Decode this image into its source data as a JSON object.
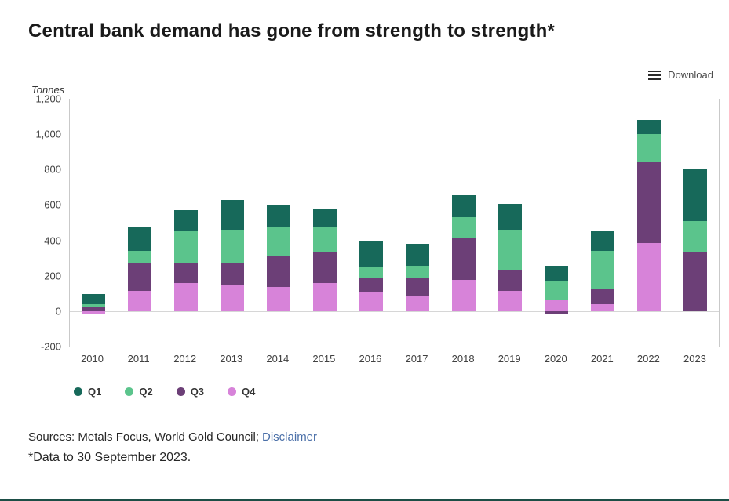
{
  "title": "Central bank demand has gone from strength to strength*",
  "toolbar": {
    "download_label": "Download"
  },
  "chart_data": {
    "type": "bar",
    "stacked": true,
    "title": "Central bank demand has gone from strength to strength*",
    "xlabel": "",
    "ylabel": "Tonnes",
    "ylim": [
      -200,
      1200
    ],
    "ytick_step": 200,
    "ytick_labels_top_to_bottom": [
      "1,200",
      "1,000",
      "800",
      "600",
      "400",
      "200",
      "0",
      "-200"
    ],
    "grid": false,
    "legend_position": "bottom",
    "categories": [
      "2010",
      "2011",
      "2012",
      "2013",
      "2014",
      "2015",
      "2016",
      "2017",
      "2018",
      "2019",
      "2020",
      "2021",
      "2022",
      "2023"
    ],
    "stack_order_bottom_to_top": [
      "Q4",
      "Q3",
      "Q2",
      "Q1"
    ],
    "series": [
      {
        "name": "Q1",
        "color": "#17695A",
        "values": [
          55,
          140,
          115,
          170,
          120,
          100,
          145,
          125,
          125,
          145,
          85,
          110,
          80,
          290
        ]
      },
      {
        "name": "Q2",
        "color": "#5BC48C",
        "values": [
          20,
          70,
          185,
          190,
          170,
          150,
          60,
          70,
          115,
          230,
          110,
          215,
          160,
          175
        ]
      },
      {
        "name": "Q3",
        "color": "#6C3F77",
        "values": [
          20,
          155,
          110,
          125,
          175,
          170,
          80,
          95,
          240,
          115,
          -15,
          85,
          455,
          335
        ]
      },
      {
        "name": "Q4",
        "color": "#D783D9",
        "values": [
          -20,
          115,
          160,
          145,
          135,
          160,
          110,
          90,
          175,
          115,
          60,
          40,
          385,
          0
        ]
      }
    ]
  },
  "footer": {
    "sources_text": "Sources: Metals Focus, World Gold Council;",
    "disclaimer_link": "Disclaimer",
    "note": "*Data to 30 September 2023."
  }
}
